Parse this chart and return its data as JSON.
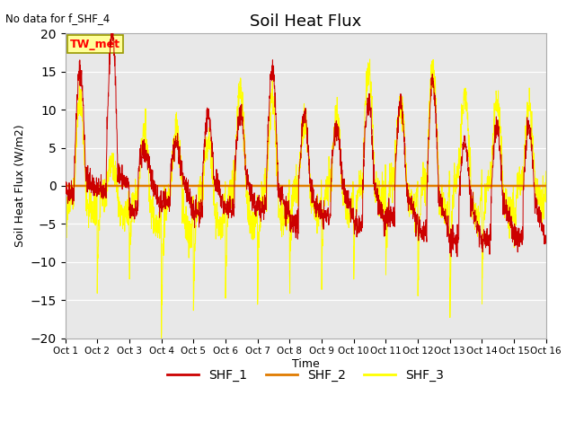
{
  "title": "Soil Heat Flux",
  "note": "No data for f_SHF_4",
  "ylabel": "Soil Heat Flux (W/m2)",
  "xlabel": "Time",
  "ylim": [
    -20,
    20
  ],
  "yticks": [
    -20,
    -15,
    -10,
    -5,
    0,
    5,
    10,
    15,
    20
  ],
  "xtick_labels": [
    "Oct 1",
    "Oct 2",
    "Oct 3",
    "Oct 4",
    "Oct 5",
    "Oct 6",
    "Oct 7",
    "Oct 8",
    "Oct 9",
    "Oct 10",
    "Oct 11",
    "Oct 12",
    "Oct 13",
    "Oct 14",
    "Oct 15",
    "Oct 16"
  ],
  "shf1_color": "#cc0000",
  "shf2_color": "#e07b00",
  "shf3_color": "#ffff00",
  "bg_color": "#e8e8e8",
  "tw_met_box_color": "#ffff99",
  "tw_met_box_edge": "#999900",
  "n_points": 2400,
  "seed": 42
}
